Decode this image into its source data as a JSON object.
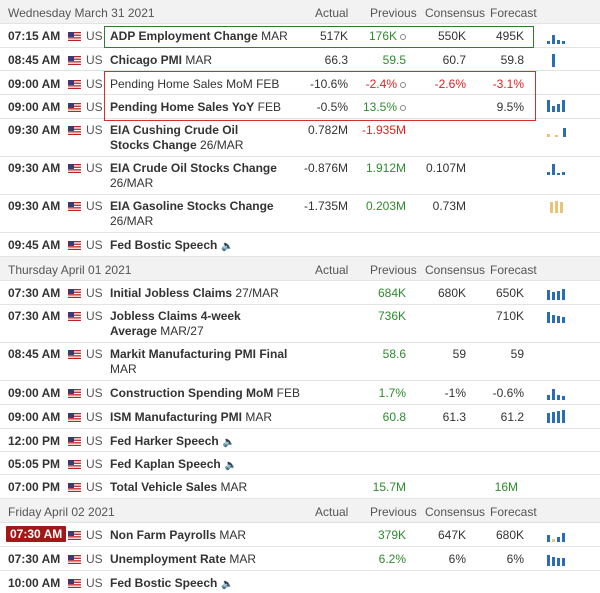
{
  "columns": {
    "actual": "Actual",
    "previous": "Previous",
    "consensus": "Consensus",
    "forecast": "Forecast"
  },
  "colors": {
    "positive": "#2e8b2e",
    "negative": "#d22",
    "spark_blue": "#2a6db5",
    "spark_gold": "#e8c37a",
    "highlight_green": "#2e7d32",
    "highlight_red": "#d32f2f"
  },
  "days": [
    {
      "date": "Wednesday March 31 2021",
      "events": [
        {
          "time": "07:15 AM",
          "country": "US",
          "name": "ADP Employment Change",
          "period": "MAR",
          "actual": "517K",
          "previous": "176K",
          "consensus": "550K",
          "forecast": "495K",
          "prev_dot": true
        },
        {
          "time": "08:45 AM",
          "country": "US",
          "name": "Chicago PMI",
          "period": "MAR",
          "actual": "66.3",
          "previous": "59.5",
          "consensus": "60.7",
          "forecast": "59.8"
        },
        {
          "time": "09:00 AM",
          "country": "US",
          "name": "Pending Home Sales MoM",
          "period": "FEB",
          "actual": "-10.6%",
          "previous": "-2.4%",
          "consensus": "-2.6%",
          "forecast": "-3.1%",
          "prev_dot": true
        },
        {
          "time": "09:00 AM",
          "country": "US",
          "name": "Pending Home Sales YoY",
          "period": "FEB",
          "actual": "-0.5%",
          "previous": "13.5%",
          "consensus": "",
          "forecast": "9.5%",
          "prev_dot": true
        },
        {
          "time": "09:30 AM",
          "country": "US",
          "name": "EIA Cushing Crude Oil Stocks Change",
          "period": "26/MAR",
          "actual": "0.782M",
          "previous": "-1.935M",
          "consensus": "",
          "forecast": ""
        },
        {
          "time": "09:30 AM",
          "country": "US",
          "name": "EIA Crude Oil Stocks Change",
          "period": "26/MAR",
          "actual": "-0.876M",
          "previous": "1.912M",
          "consensus": "0.107M",
          "forecast": ""
        },
        {
          "time": "09:30 AM",
          "country": "US",
          "name": "EIA Gasoline Stocks Change",
          "period": "26/MAR",
          "actual": "-1.735M",
          "previous": "0.203M",
          "consensus": "0.73M",
          "forecast": ""
        },
        {
          "time": "09:45 AM",
          "country": "US",
          "name": "Fed Bostic Speech",
          "period": "",
          "actual": "",
          "previous": "",
          "consensus": "",
          "forecast": "",
          "speech": true
        }
      ]
    },
    {
      "date": "Thursday April 01 2021",
      "events": [
        {
          "time": "07:30 AM",
          "country": "US",
          "name": "Initial Jobless Claims",
          "period": "27/MAR",
          "actual": "",
          "previous": "684K",
          "consensus": "680K",
          "forecast": "650K"
        },
        {
          "time": "07:30 AM",
          "country": "US",
          "name": "Jobless Claims 4-week Average",
          "period": "MAR/27",
          "actual": "",
          "previous": "736K",
          "consensus": "",
          "forecast": "710K"
        },
        {
          "time": "08:45 AM",
          "country": "US",
          "name": "Markit Manufacturing PMI Final",
          "period": "MAR",
          "actual": "",
          "previous": "58.6",
          "consensus": "59",
          "forecast": "59"
        },
        {
          "time": "09:00 AM",
          "country": "US",
          "name": "Construction Spending MoM",
          "period": "FEB",
          "actual": "",
          "previous": "1.7%",
          "consensus": "-1%",
          "forecast": "-0.6%"
        },
        {
          "time": "09:00 AM",
          "country": "US",
          "name": "ISM Manufacturing PMI",
          "period": "MAR",
          "actual": "",
          "previous": "60.8",
          "consensus": "61.3",
          "forecast": "61.2"
        },
        {
          "time": "12:00 PM",
          "country": "US",
          "name": "Fed Harker Speech",
          "period": "",
          "actual": "",
          "previous": "",
          "consensus": "",
          "forecast": "",
          "speech": true
        },
        {
          "time": "05:05 PM",
          "country": "US",
          "name": "Fed Kaplan Speech",
          "period": "",
          "actual": "",
          "previous": "",
          "consensus": "",
          "forecast": "",
          "speech": true
        },
        {
          "time": "07:00 PM",
          "country": "US",
          "name": "Total Vehicle Sales",
          "period": "MAR",
          "actual": "",
          "previous": "15.7M",
          "consensus": "",
          "forecast": "16M"
        }
      ]
    },
    {
      "date": "Friday April 02 2021",
      "events": [
        {
          "time": "07:30 AM",
          "country": "US",
          "name": "Non Farm Payrolls",
          "period": "MAR",
          "actual": "",
          "previous": "379K",
          "consensus": "647K",
          "forecast": "680K",
          "highlight_time": true
        },
        {
          "time": "07:30 AM",
          "country": "US",
          "name": "Unemployment Rate",
          "period": "MAR",
          "actual": "",
          "previous": "6.2%",
          "consensus": "6%",
          "forecast": "6%"
        },
        {
          "time": "10:00 AM",
          "country": "US",
          "name": "Fed Bostic Speech",
          "period": "",
          "actual": "",
          "previous": "",
          "consensus": "",
          "forecast": "",
          "speech": true
        }
      ]
    }
  ]
}
